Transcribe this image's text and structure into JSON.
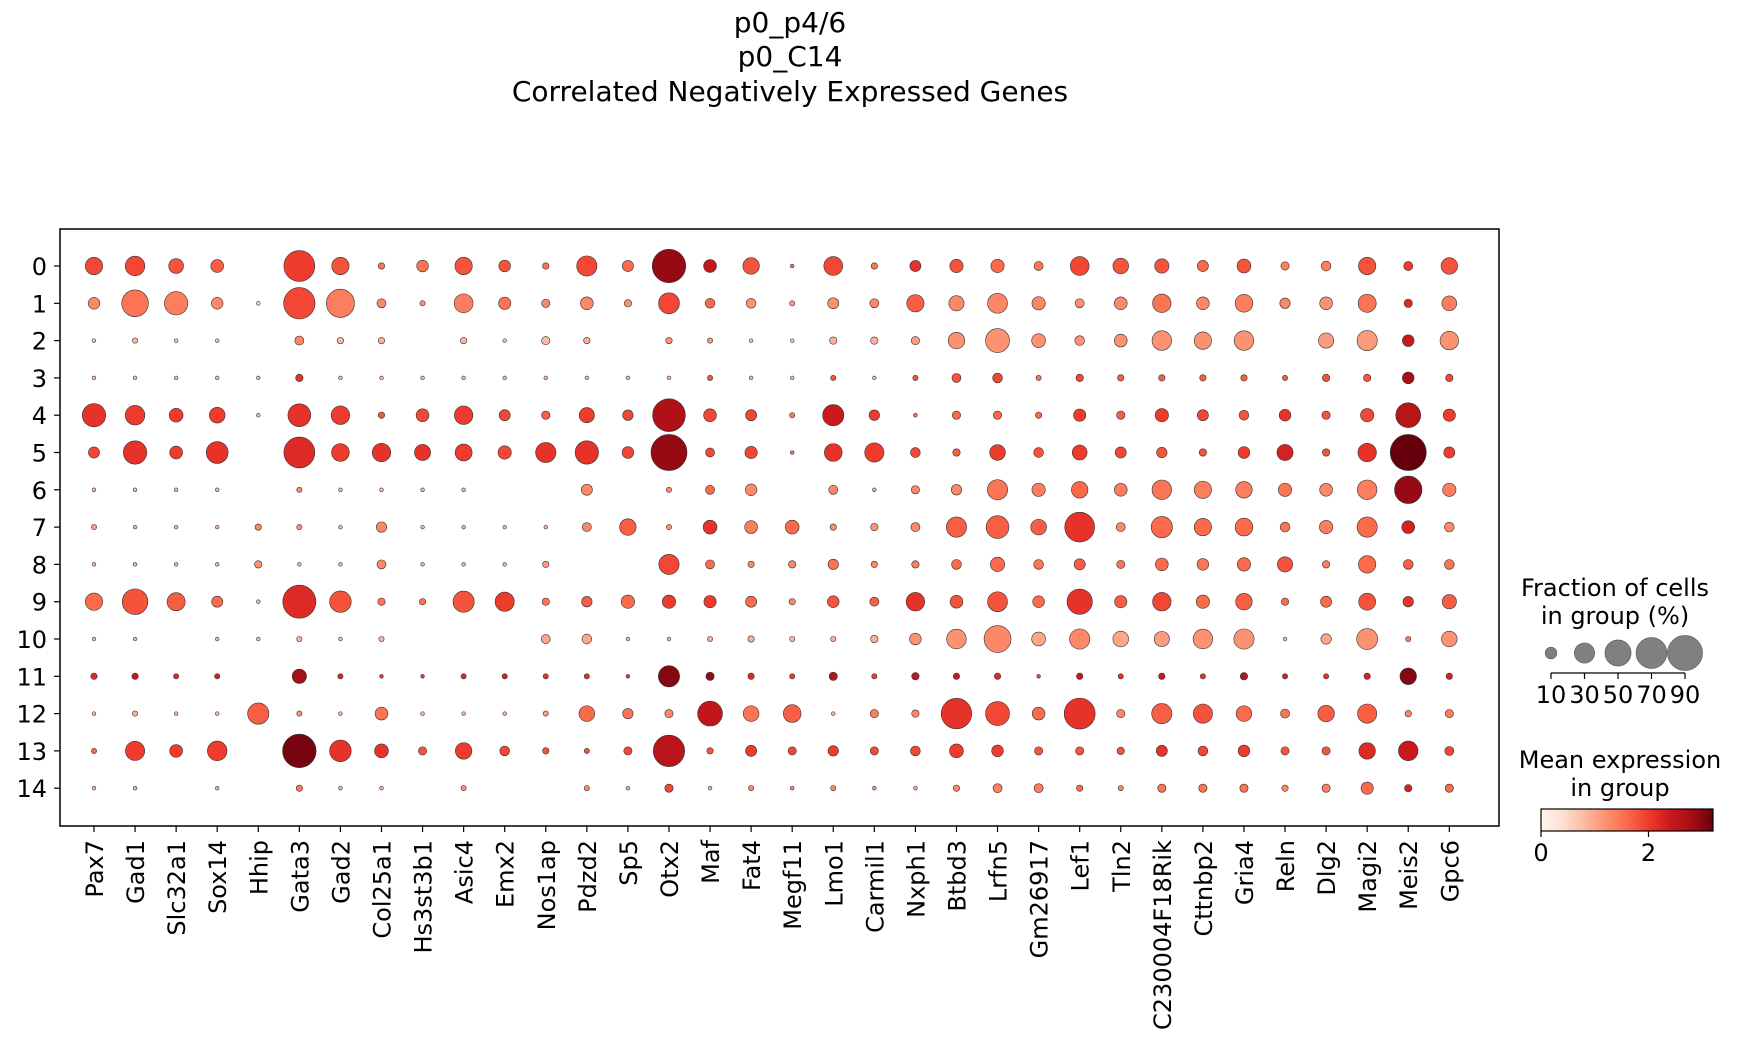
{
  "chart_data": {
    "type": "dotplot",
    "title": [
      "p0_p4/6",
      "p0_C14",
      "Correlated Negatively Expressed Genes"
    ],
    "genes": [
      "Pax7",
      "Gad1",
      "Slc32a1",
      "Sox14",
      "Hhip",
      "Gata3",
      "Gad2",
      "Col25a1",
      "Hs3st3b1",
      "Asic4",
      "Emx2",
      "Nos1ap",
      "Pdzd2",
      "Sp5",
      "Otx2",
      "Maf",
      "Fat4",
      "Megf11",
      "Lmo1",
      "Carmil1",
      "Nxph1",
      "Btbd3",
      "Lrfn5",
      "Gm26917",
      "Lef1",
      "Tln2",
      "C230004F18Rik",
      "Cttnbp2",
      "Gria4",
      "Reln",
      "Dlg2",
      "Magi2",
      "Meis2",
      "Gpc6"
    ],
    "groups": [
      "0",
      "1",
      "2",
      "3",
      "4",
      "5",
      "6",
      "7",
      "8",
      "9",
      "10",
      "11",
      "12",
      "13",
      "14"
    ],
    "fraction_pct": [
      [
        22,
        28,
        16,
        12,
        0,
        70,
        22,
        3,
        10,
        22,
        10,
        3,
        30,
        9,
        82,
        12,
        20,
        1,
        26,
        3,
        9,
        13,
        13,
        6,
        26,
        18,
        15,
        9,
        14,
        5,
        7,
        22,
        6,
        20
      ],
      [
        10,
        52,
        40,
        10,
        1,
        72,
        58,
        6,
        2,
        26,
        11,
        5,
        12,
        4,
        32,
        7,
        7,
        2,
        9,
        6,
        22,
        17,
        29,
        13,
        6,
        12,
        25,
        12,
        23,
        8,
        12,
        24,
        5,
        16
      ],
      [
        1,
        2,
        1,
        1,
        0,
        6,
        3,
        3,
        0,
        3,
        1,
        5,
        3,
        0,
        3,
        2,
        1,
        1,
        4,
        4,
        5,
        20,
        42,
        14,
        7,
        12,
        28,
        22,
        28,
        0,
        17,
        30,
        10,
        25
      ],
      [
        1,
        1,
        1,
        1,
        1,
        4,
        1,
        1,
        1,
        1,
        1,
        1,
        1,
        1,
        1,
        2,
        1,
        1,
        2,
        1,
        2,
        6,
        7,
        2,
        4,
        3,
        3,
        3,
        3,
        2,
        4,
        4,
        10,
        4
      ],
      [
        40,
        28,
        14,
        18,
        1,
        38,
        25,
        3,
        12,
        25,
        9,
        5,
        17,
        8,
        78,
        12,
        9,
        2,
        33,
        8,
        1,
        5,
        5,
        3,
        11,
        5,
        13,
        9,
        7,
        10,
        5,
        13,
        45,
        11
      ],
      [
        9,
        40,
        12,
        35,
        0,
        70,
        23,
        25,
        19,
        21,
        13,
        30,
        40,
        10,
        95,
        6,
        11,
        1,
        23,
        27,
        7,
        4,
        18,
        7,
        16,
        9,
        8,
        4,
        10,
        19,
        4,
        25,
        95,
        9
      ],
      [
        1,
        1,
        1,
        1,
        0,
        2,
        1,
        1,
        1,
        1,
        0,
        0,
        9,
        0,
        2,
        6,
        10,
        0,
        6,
        1,
        5,
        8,
        30,
        13,
        20,
        12,
        28,
        22,
        20,
        13,
        12,
        28,
        55,
        13
      ],
      [
        2,
        1,
        1,
        1,
        3,
        2,
        1,
        8,
        1,
        1,
        1,
        1,
        6,
        20,
        2,
        14,
        12,
        14,
        3,
        4,
        6,
        30,
        38,
        18,
        65,
        6,
        33,
        22,
        23,
        7,
        13,
        30,
        12,
        7
      ],
      [
        1,
        1,
        1,
        1,
        4,
        1,
        1,
        6,
        1,
        1,
        1,
        3,
        0,
        0,
        30,
        6,
        3,
        4,
        8,
        3,
        4,
        7,
        15,
        7,
        9,
        5,
        12,
        10,
        13,
        17,
        4,
        22,
        7,
        7
      ],
      [
        22,
        48,
        24,
        9,
        1,
        80,
        34,
        4,
        3,
        33,
        27,
        4,
        8,
        13,
        13,
        11,
        9,
        3,
        10,
        6,
        25,
        12,
        29,
        10,
        47,
        11,
        25,
        13,
        20,
        4,
        9,
        21,
        8,
        15
      ],
      [
        1,
        1,
        0,
        1,
        1,
        2,
        1,
        2,
        0,
        0,
        0,
        6,
        7,
        1,
        1,
        2,
        3,
        2,
        2,
        4,
        10,
        28,
        53,
        14,
        30,
        18,
        17,
        28,
        30,
        1,
        8,
        32,
        2,
        18
      ],
      [
        3,
        3,
        2,
        2,
        0,
        15,
        2,
        1,
        1,
        2,
        2,
        2,
        2,
        1,
        33,
        5,
        3,
        2,
        5,
        2,
        4,
        3,
        3,
        1,
        3,
        2,
        3,
        2,
        4,
        2,
        2,
        3,
        20,
        3
      ],
      [
        1,
        2,
        1,
        1,
        33,
        2,
        1,
        12,
        1,
        1,
        1,
        2,
        18,
        8,
        5,
        45,
        18,
        23,
        1,
        5,
        4,
        68,
        42,
        12,
        70,
        5,
        30,
        27,
        18,
        6,
        20,
        27,
        3,
        5
      ],
      [
        2,
        27,
        12,
        28,
        0,
        82,
        34,
        14,
        5,
        20,
        7,
        3,
        2,
        5,
        72,
        3,
        9,
        5,
        8,
        5,
        7,
        14,
        10,
        5,
        5,
        4,
        9,
        7,
        10,
        5,
        5,
        20,
        28,
        6
      ],
      [
        1,
        1,
        0,
        1,
        0,
        3,
        1,
        1,
        0,
        2,
        0,
        0,
        2,
        1,
        5,
        1,
        2,
        1,
        2,
        1,
        1,
        3,
        6,
        6,
        3,
        2,
        5,
        5,
        5,
        3,
        5,
        11,
        4,
        5
      ]
    ],
    "mean_expression": [
      [
        1.9,
        1.9,
        1.8,
        1.7,
        0,
        2.0,
        1.8,
        1.5,
        1.5,
        1.8,
        1.8,
        1.5,
        1.9,
        1.6,
        2.9,
        2.5,
        1.8,
        1.5,
        1.9,
        1.5,
        2.1,
        1.8,
        1.6,
        1.5,
        1.9,
        1.8,
        1.8,
        1.6,
        1.8,
        1.4,
        1.4,
        1.8,
        2.0,
        1.8
      ],
      [
        1.3,
        1.5,
        1.4,
        1.3,
        0.5,
        1.9,
        1.4,
        1.3,
        1.2,
        1.4,
        1.5,
        1.3,
        1.3,
        1.2,
        1.9,
        1.6,
        1.2,
        1.1,
        1.2,
        1.3,
        1.7,
        1.3,
        1.3,
        1.3,
        1.2,
        1.3,
        1.5,
        1.3,
        1.4,
        1.3,
        1.2,
        1.5,
        2.2,
        1.4
      ],
      [
        0.8,
        0.8,
        0.8,
        0.8,
        0,
        1.3,
        0.8,
        0.9,
        0,
        0.8,
        0.8,
        0.8,
        0.9,
        0,
        1.2,
        1.1,
        0.8,
        0.8,
        0.9,
        0.9,
        1.1,
        1.2,
        1.2,
        1.2,
        1.2,
        1.2,
        1.2,
        1.2,
        1.2,
        0,
        1.1,
        1.1,
        2.4,
        1.2
      ],
      [
        0.8,
        0.8,
        0.8,
        0.8,
        0.8,
        2.1,
        0.8,
        0.8,
        0.8,
        0.8,
        0.8,
        0.8,
        0.8,
        0.8,
        0.8,
        1.8,
        0.8,
        0.8,
        1.8,
        0.8,
        1.8,
        1.8,
        1.9,
        1.5,
        1.9,
        1.7,
        1.7,
        1.7,
        1.7,
        1.7,
        1.8,
        1.8,
        2.8,
        1.9
      ],
      [
        2.1,
        2.0,
        2.0,
        2.0,
        0.8,
        2.1,
        2.0,
        1.8,
        1.9,
        2.0,
        1.9,
        1.7,
        2.0,
        1.9,
        2.7,
        1.9,
        1.9,
        1.4,
        2.4,
        2.0,
        1.5,
        1.6,
        1.6,
        1.6,
        2.0,
        1.7,
        2.0,
        1.9,
        1.8,
        2.1,
        1.8,
        1.9,
        2.6,
        2.0
      ],
      [
        1.9,
        2.1,
        2.0,
        2.1,
        0,
        2.2,
        2.0,
        2.1,
        2.1,
        2.0,
        1.9,
        2.1,
        2.1,
        1.9,
        2.9,
        1.9,
        1.9,
        1.5,
        2.1,
        2.0,
        1.9,
        1.7,
        2.0,
        1.8,
        2.0,
        1.9,
        1.8,
        1.8,
        2.0,
        2.3,
        1.8,
        2.1,
        3.2,
        2.0
      ],
      [
        0.8,
        0.8,
        0.8,
        0.8,
        0,
        1.3,
        0.8,
        0.8,
        0.8,
        0.8,
        0,
        0,
        1.3,
        0,
        1.3,
        1.6,
        1.3,
        0,
        1.3,
        0.9,
        1.3,
        1.3,
        1.5,
        1.4,
        1.6,
        1.4,
        1.5,
        1.4,
        1.4,
        1.5,
        1.3,
        1.4,
        2.9,
        1.4
      ],
      [
        1.0,
        0.9,
        0.9,
        0.9,
        1.3,
        1.2,
        0.9,
        1.3,
        0.9,
        0.9,
        0.9,
        0.9,
        1.3,
        1.7,
        1.2,
        2.1,
        1.4,
        1.6,
        1.2,
        1.2,
        1.3,
        1.7,
        1.7,
        1.7,
        2.1,
        1.3,
        1.6,
        1.6,
        1.6,
        1.5,
        1.4,
        1.6,
        2.3,
        1.3
      ],
      [
        0.9,
        0.9,
        0.9,
        0.9,
        1.2,
        0.9,
        0.9,
        1.3,
        0.9,
        0.9,
        0.9,
        1.1,
        0,
        0,
        1.9,
        1.6,
        1.3,
        1.3,
        1.5,
        1.3,
        1.4,
        1.6,
        1.6,
        1.5,
        1.7,
        1.5,
        1.6,
        1.5,
        1.6,
        1.8,
        1.4,
        1.6,
        1.7,
        1.5
      ],
      [
        1.6,
        1.8,
        1.7,
        1.6,
        0.8,
        2.2,
        1.8,
        1.5,
        1.5,
        1.8,
        2.0,
        1.5,
        1.7,
        1.6,
        2.0,
        2.0,
        1.6,
        1.3,
        1.8,
        1.7,
        2.1,
        1.8,
        1.8,
        1.6,
        2.1,
        1.7,
        1.9,
        1.6,
        1.7,
        1.6,
        1.6,
        1.8,
        2.1,
        1.7
      ],
      [
        0.8,
        0.8,
        0,
        0.8,
        0.8,
        0.9,
        0.8,
        0.8,
        0,
        0,
        0,
        1.0,
        1.0,
        0.8,
        0.8,
        0.9,
        0.9,
        0.8,
        0.9,
        0.9,
        1.2,
        1.2,
        1.3,
        1.0,
        1.3,
        1.0,
        1.1,
        1.2,
        1.2,
        0.8,
        1.0,
        1.2,
        1.4,
        1.2
      ],
      [
        2.2,
        2.4,
        2.2,
        2.3,
        0,
        2.8,
        2.2,
        2.0,
        2.0,
        2.2,
        2.3,
        2.1,
        2.1,
        2.0,
        3.0,
        2.9,
        2.2,
        2.0,
        2.6,
        2.0,
        2.5,
        2.4,
        2.2,
        1.9,
        2.5,
        2.1,
        2.4,
        2.1,
        2.6,
        2.3,
        2.1,
        2.3,
        3.0,
        2.3
      ],
      [
        0.9,
        0.9,
        0.9,
        0.9,
        1.7,
        1.2,
        0.9,
        1.5,
        0.9,
        0.9,
        0.9,
        1.1,
        1.6,
        1.5,
        1.3,
        2.5,
        1.5,
        1.7,
        0.9,
        1.4,
        1.3,
        2.1,
        1.9,
        1.6,
        2.1,
        1.3,
        1.7,
        1.8,
        1.6,
        1.5,
        1.7,
        1.7,
        1.3,
        1.4
      ],
      [
        1.6,
        2.0,
        2.0,
        2.0,
        0,
        3.1,
        2.1,
        2.1,
        1.8,
        2.0,
        1.9,
        1.8,
        1.8,
        1.9,
        2.6,
        1.8,
        2.0,
        1.9,
        2.0,
        1.9,
        1.9,
        2.0,
        2.0,
        1.8,
        1.8,
        1.8,
        2.1,
        1.9,
        2.0,
        1.8,
        1.8,
        2.2,
        2.4,
        1.9
      ],
      [
        0.9,
        0.9,
        0,
        0.9,
        0,
        1.5,
        0.9,
        0.9,
        0,
        1.2,
        0,
        0,
        1.3,
        0.9,
        1.9,
        0.9,
        1.3,
        1.3,
        1.3,
        1.2,
        0.9,
        1.3,
        1.4,
        1.4,
        1.6,
        1.3,
        1.5,
        1.5,
        1.5,
        1.3,
        1.4,
        1.6,
        2.3,
        1.6
      ]
    ],
    "size_legend": {
      "title_line1": "Fraction of cells",
      "title_line2": "in group (%)",
      "values": [
        10,
        30,
        50,
        70,
        90
      ]
    },
    "color_legend": {
      "title_line1": "Mean expression",
      "title_line2": "in group",
      "ticks": [
        0,
        2
      ],
      "vmin": 0,
      "vmax": 3.2,
      "colormap": "Reds",
      "colors": [
        "#fff5f0",
        "#fee0d2",
        "#fcbba1",
        "#fc9272",
        "#fb6a4a",
        "#ef3b2c",
        "#cb181d",
        "#a50f15",
        "#67000d"
      ]
    },
    "grid": false
  }
}
